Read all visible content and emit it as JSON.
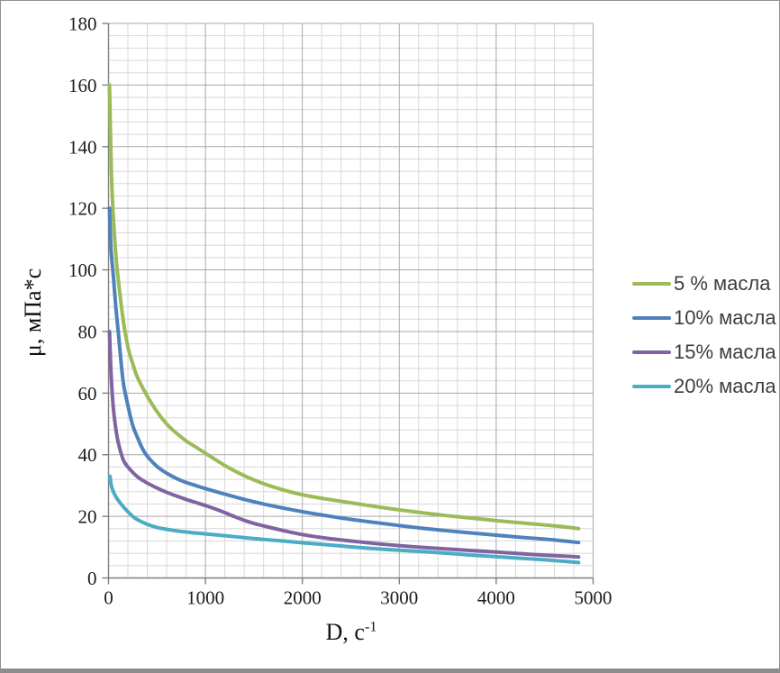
{
  "chart_data": {
    "type": "line",
    "title": "",
    "xlabel": "D, с⁻¹",
    "xlabel_main": "D, с",
    "xlabel_sup": "-1",
    "ylabel": "μ, мПа*с",
    "xlim": [
      0,
      5000
    ],
    "ylim": [
      0,
      180
    ],
    "x_major_unit": 1000,
    "x_minor_unit": 200,
    "y_major_unit": 20,
    "y_minor_unit": 4,
    "x_ticks": [
      0,
      1000,
      2000,
      3000,
      4000,
      5000
    ],
    "y_ticks": [
      0,
      20,
      40,
      60,
      80,
      100,
      120,
      140,
      160,
      180
    ],
    "grid": "major+minor",
    "legend_position": "right",
    "series": [
      {
        "name": "5 % масла",
        "color": "#9BBB59",
        "points": [
          [
            10,
            160
          ],
          [
            30,
            131
          ],
          [
            50,
            117
          ],
          [
            75,
            105
          ],
          [
            100,
            97
          ],
          [
            150,
            84
          ],
          [
            200,
            75
          ],
          [
            250,
            69.5
          ],
          [
            300,
            65
          ],
          [
            400,
            59
          ],
          [
            500,
            54
          ],
          [
            600,
            50
          ],
          [
            700,
            47
          ],
          [
            800,
            44.5
          ],
          [
            900,
            42.5
          ],
          [
            1000,
            40.5
          ],
          [
            1200,
            36.5
          ],
          [
            1400,
            33.2
          ],
          [
            1600,
            30.6
          ],
          [
            1800,
            28.6
          ],
          [
            2000,
            27
          ],
          [
            2250,
            25.6
          ],
          [
            2500,
            24.4
          ],
          [
            2750,
            23.2
          ],
          [
            3000,
            22.1
          ],
          [
            3250,
            21.1
          ],
          [
            3500,
            20.2
          ],
          [
            3750,
            19.4
          ],
          [
            4000,
            18.6
          ],
          [
            4250,
            17.9
          ],
          [
            4500,
            17.2
          ],
          [
            4700,
            16.6
          ],
          [
            4850,
            16
          ]
        ]
      },
      {
        "name": "10% масла",
        "color": "#4F81BD",
        "points": [
          [
            10,
            120
          ],
          [
            25,
            107
          ],
          [
            50,
            98
          ],
          [
            75,
            88
          ],
          [
            100,
            80
          ],
          [
            150,
            64
          ],
          [
            200,
            56
          ],
          [
            250,
            49.5
          ],
          [
            300,
            45.5
          ],
          [
            350,
            42
          ],
          [
            400,
            39.5
          ],
          [
            500,
            36.2
          ],
          [
            600,
            34
          ],
          [
            700,
            32.3
          ],
          [
            800,
            31
          ],
          [
            900,
            30
          ],
          [
            1000,
            29
          ],
          [
            1200,
            27.2
          ],
          [
            1400,
            25.5
          ],
          [
            1600,
            24
          ],
          [
            1800,
            22.7
          ],
          [
            2000,
            21.5
          ],
          [
            2250,
            20.2
          ],
          [
            2500,
            19
          ],
          [
            2750,
            18
          ],
          [
            3000,
            17
          ],
          [
            3250,
            16.1
          ],
          [
            3500,
            15.3
          ],
          [
            3750,
            14.6
          ],
          [
            4000,
            13.9
          ],
          [
            4250,
            13.2
          ],
          [
            4500,
            12.6
          ],
          [
            4700,
            12
          ],
          [
            4850,
            11.5
          ]
        ]
      },
      {
        "name": "15% масла",
        "color": "#8064A2",
        "points": [
          [
            10,
            80
          ],
          [
            20,
            71
          ],
          [
            30,
            64
          ],
          [
            50,
            55
          ],
          [
            75,
            48.5
          ],
          [
            100,
            44
          ],
          [
            150,
            38.5
          ],
          [
            200,
            36
          ],
          [
            300,
            32.8
          ],
          [
            400,
            30.8
          ],
          [
            500,
            29.2
          ],
          [
            600,
            27.8
          ],
          [
            700,
            26.6
          ],
          [
            800,
            25.5
          ],
          [
            900,
            24.5
          ],
          [
            1000,
            23.5
          ],
          [
            1100,
            22.4
          ],
          [
            1200,
            21.2
          ],
          [
            1300,
            19.9
          ],
          [
            1400,
            18.7
          ],
          [
            1500,
            17.7
          ],
          [
            1600,
            16.9
          ],
          [
            1800,
            15.4
          ],
          [
            2000,
            14.1
          ],
          [
            2250,
            12.9
          ],
          [
            2500,
            12
          ],
          [
            2750,
            11.2
          ],
          [
            3000,
            10.5
          ],
          [
            3250,
            9.9
          ],
          [
            3500,
            9.4
          ],
          [
            3750,
            8.9
          ],
          [
            4000,
            8.4
          ],
          [
            4250,
            7.9
          ],
          [
            4500,
            7.4
          ],
          [
            4700,
            7.1
          ],
          [
            4850,
            6.8
          ]
        ]
      },
      {
        "name": "20% масла",
        "color": "#4BACC6",
        "points": [
          [
            15,
            33
          ],
          [
            30,
            29.8
          ],
          [
            50,
            28
          ],
          [
            75,
            26.4
          ],
          [
            100,
            25.2
          ],
          [
            150,
            23.2
          ],
          [
            200,
            21.5
          ],
          [
            250,
            20
          ],
          [
            300,
            18.9
          ],
          [
            400,
            17.4
          ],
          [
            500,
            16.4
          ],
          [
            600,
            15.8
          ],
          [
            700,
            15.3
          ],
          [
            800,
            14.9
          ],
          [
            900,
            14.6
          ],
          [
            1000,
            14.3
          ],
          [
            1200,
            13.7
          ],
          [
            1400,
            13.1
          ],
          [
            1600,
            12.5
          ],
          [
            1800,
            12
          ],
          [
            2000,
            11.4
          ],
          [
            2250,
            10.8
          ],
          [
            2500,
            10.1
          ],
          [
            2750,
            9.5
          ],
          [
            3000,
            9
          ],
          [
            3250,
            8.5
          ],
          [
            3500,
            8
          ],
          [
            3750,
            7.4
          ],
          [
            4000,
            6.9
          ],
          [
            4250,
            6.4
          ],
          [
            4500,
            5.9
          ],
          [
            4700,
            5.4
          ],
          [
            4850,
            5
          ]
        ]
      }
    ]
  },
  "colors": {
    "grid_minor": "#d8d8d8",
    "grid_major": "#a8a8a8",
    "axis_line": "#7f7f7f",
    "tick_text": "#1c1c1c",
    "frame_border": "#919191"
  }
}
